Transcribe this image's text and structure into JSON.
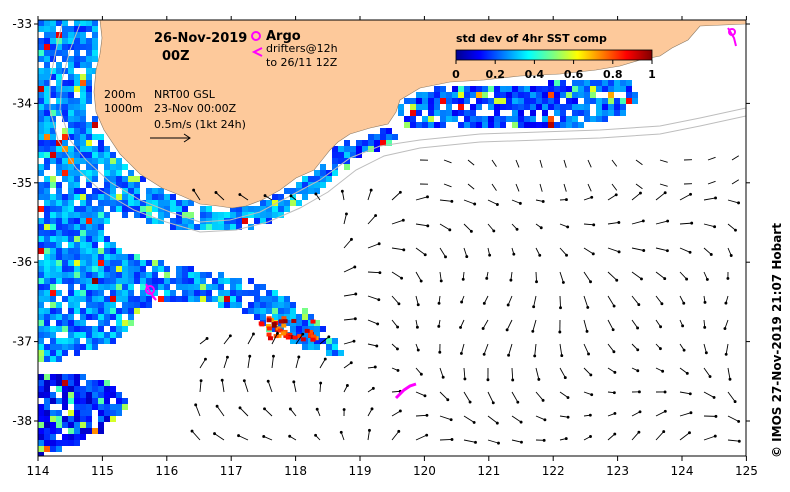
{
  "map": {
    "date": "26-Nov-2019",
    "hour": "00Z",
    "argo_label": "Argo",
    "drifters_label": "drifters@12h",
    "drifters_to": "to 26/11 12Z",
    "isobath_200": "200m",
    "isobath_1000": "1000m",
    "product": "NRT00 GSL",
    "product_date": "23-Nov 00:00Z",
    "scale_label": "0.5m/s (1kt 24h)",
    "credit": "© IMOS 27-Nov-2019 21:07 Hobart",
    "colors": {
      "land": "#FDC99B",
      "ocean_bg": "#FFFFFF",
      "argo": "#FF00FF",
      "arrow": "#000000",
      "isobath": "#BDBDBD"
    },
    "x_ticks": [
      "114",
      "115",
      "116",
      "117",
      "118",
      "119",
      "120",
      "121",
      "122",
      "123",
      "124",
      "125"
    ],
    "y_ticks": [
      "-33",
      "-34",
      "-35",
      "-36",
      "-37",
      "-38"
    ]
  },
  "colorbar": {
    "title": "std dev of 4hr SST comp",
    "ticks": [
      "0",
      "0.2",
      "0.4",
      "0.6",
      "0.8",
      "1"
    ],
    "colormap": "jet",
    "range": [
      0,
      1
    ]
  }
}
